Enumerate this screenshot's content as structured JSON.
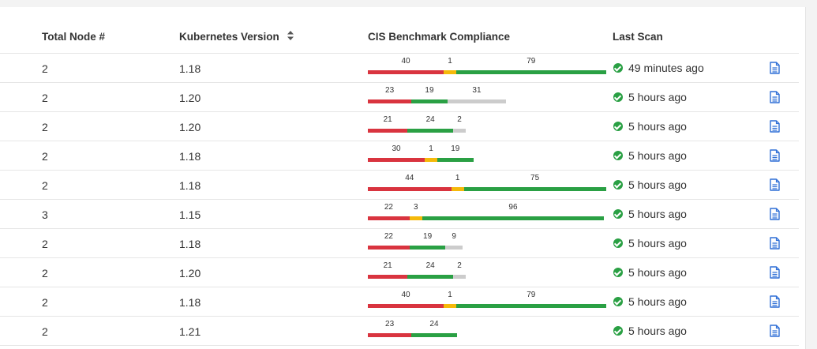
{
  "columns": {
    "nodes": "Total Node #",
    "version": "Kubernetes Version",
    "cis": "CIS Benchmark Compliance",
    "scan": "Last Scan"
  },
  "colors": {
    "fail": "#d9343f",
    "warn": "#f5b90a",
    "pass": "#2aa044",
    "not_applicable": "#cccccc"
  },
  "rows": [
    {
      "nodes": "2",
      "version": "1.18",
      "cis": {
        "fail": 40,
        "warn": 1,
        "pass": 79,
        "na": 0
      },
      "scan": "49 minutes ago"
    },
    {
      "nodes": "2",
      "version": "1.20",
      "cis": {
        "fail": 23,
        "warn": 0,
        "pass": 19,
        "na": 31
      },
      "scan": "5 hours ago"
    },
    {
      "nodes": "2",
      "version": "1.20",
      "cis": {
        "fail": 21,
        "warn": 0,
        "pass": 24,
        "na": 2
      },
      "scan": "5 hours ago"
    },
    {
      "nodes": "2",
      "version": "1.18",
      "cis": {
        "fail": 30,
        "warn": 1,
        "pass": 19,
        "na": 0
      },
      "scan": "5 hours ago"
    },
    {
      "nodes": "2",
      "version": "1.18",
      "cis": {
        "fail": 44,
        "warn": 1,
        "pass": 75,
        "na": 0
      },
      "scan": "5 hours ago"
    },
    {
      "nodes": "3",
      "version": "1.15",
      "cis": {
        "fail": 22,
        "warn": 3,
        "pass": 96,
        "na": 0
      },
      "scan": "5 hours ago"
    },
    {
      "nodes": "2",
      "version": "1.18",
      "cis": {
        "fail": 22,
        "warn": 0,
        "pass": 19,
        "na": 9
      },
      "scan": "5 hours ago"
    },
    {
      "nodes": "2",
      "version": "1.20",
      "cis": {
        "fail": 21,
        "warn": 0,
        "pass": 24,
        "na": 2
      },
      "scan": "5 hours ago"
    },
    {
      "nodes": "2",
      "version": "1.18",
      "cis": {
        "fail": 40,
        "warn": 1,
        "pass": 79,
        "na": 0
      },
      "scan": "5 hours ago"
    },
    {
      "nodes": "2",
      "version": "1.21",
      "cis": {
        "fail": 23,
        "warn": 0,
        "pass": 24,
        "na": 0
      },
      "scan": "5 hours ago"
    }
  ]
}
